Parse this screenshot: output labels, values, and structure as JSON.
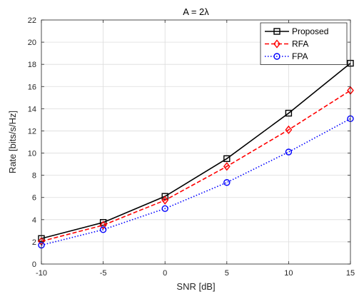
{
  "chart_data": {
    "type": "line",
    "title": "A = 2λ",
    "xlabel": "SNR [dB]",
    "ylabel": "Rate [bits/s/Hz]",
    "x": [
      -10,
      -5,
      0,
      5,
      10,
      15
    ],
    "xlim": [
      -10,
      15
    ],
    "ylim": [
      0,
      22
    ],
    "xticks": [
      -10,
      -5,
      0,
      5,
      10,
      15
    ],
    "yticks": [
      0,
      2,
      4,
      6,
      8,
      10,
      12,
      14,
      16,
      18,
      20,
      22
    ],
    "grid": true,
    "legend_position": "top-right",
    "series": [
      {
        "name": "Proposed",
        "values": [
          2.3,
          3.75,
          6.1,
          9.5,
          13.6,
          18.1
        ],
        "color": "#000000",
        "line_style": "solid",
        "marker": "square"
      },
      {
        "name": "RFA",
        "values": [
          2.05,
          3.5,
          5.75,
          8.8,
          12.1,
          15.65
        ],
        "color": "#ff0000",
        "line_style": "dashed",
        "marker": "diamond"
      },
      {
        "name": "FPA",
        "values": [
          1.7,
          3.1,
          5.0,
          7.35,
          10.1,
          13.1
        ],
        "color": "#0000ff",
        "line_style": "dotted",
        "marker": "circle"
      }
    ]
  }
}
